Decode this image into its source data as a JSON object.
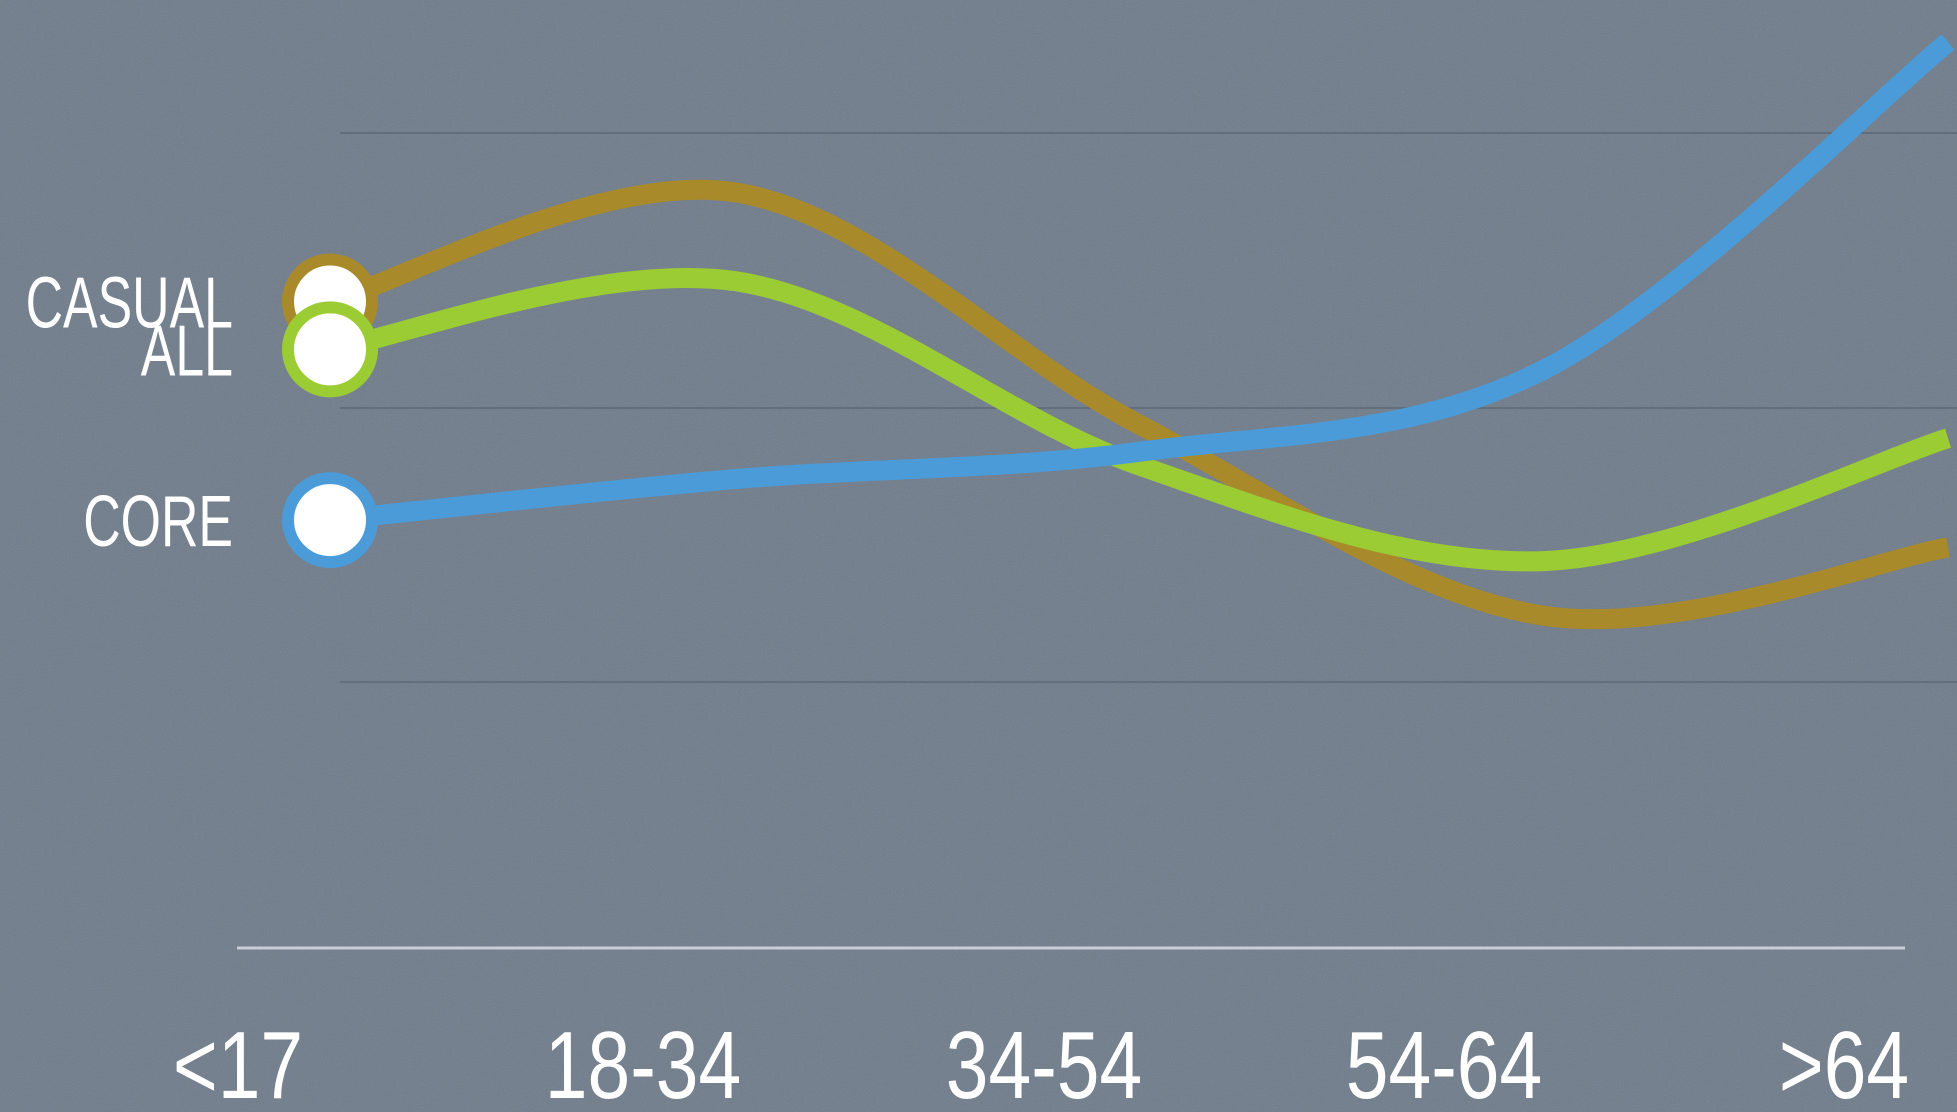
{
  "colors": {
    "background": "#6f7b8a",
    "gridline": "#5f6a78",
    "axis": "#c9ced6",
    "marker_fill": "#ffffff",
    "text": "#ffffff"
  },
  "chart_data": {
    "type": "line",
    "title": "",
    "xlabel": "",
    "ylabel": "",
    "categories": [
      "<17",
      "18-34",
      "34-54",
      "54-64",
      ">64"
    ],
    "grid": true,
    "legend": "left (labels beside starting markers)",
    "series": [
      {
        "name": "CASUAL",
        "color": "#a88a2b",
        "values": [
          62,
          78,
          44,
          16,
          26
        ]
      },
      {
        "name": "ALL",
        "color": "#9bcc33",
        "values": [
          55,
          65,
          38,
          24,
          42
        ]
      },
      {
        "name": "CORE",
        "color": "#4a9bd8",
        "values": [
          30,
          36,
          40,
          52,
          100
        ]
      }
    ],
    "ylim": [
      0,
      100
    ]
  }
}
